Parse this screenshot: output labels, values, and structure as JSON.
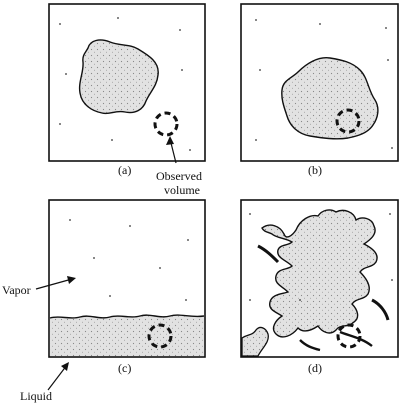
{
  "panels": [
    {
      "id": "a",
      "caption": "(a)"
    },
    {
      "id": "b",
      "caption": "(b)"
    },
    {
      "id": "c",
      "caption": "(c)"
    },
    {
      "id": "d",
      "caption": "(d)"
    }
  ],
  "annotations": {
    "observed_volume_line1": "Observed",
    "observed_volume_line2": "volume",
    "vapor": "Vapor",
    "liquid": "Liquid"
  },
  "colors": {
    "ink": "#111111",
    "liquid_fill": "#d9d9d9",
    "background": "#ffffff"
  }
}
